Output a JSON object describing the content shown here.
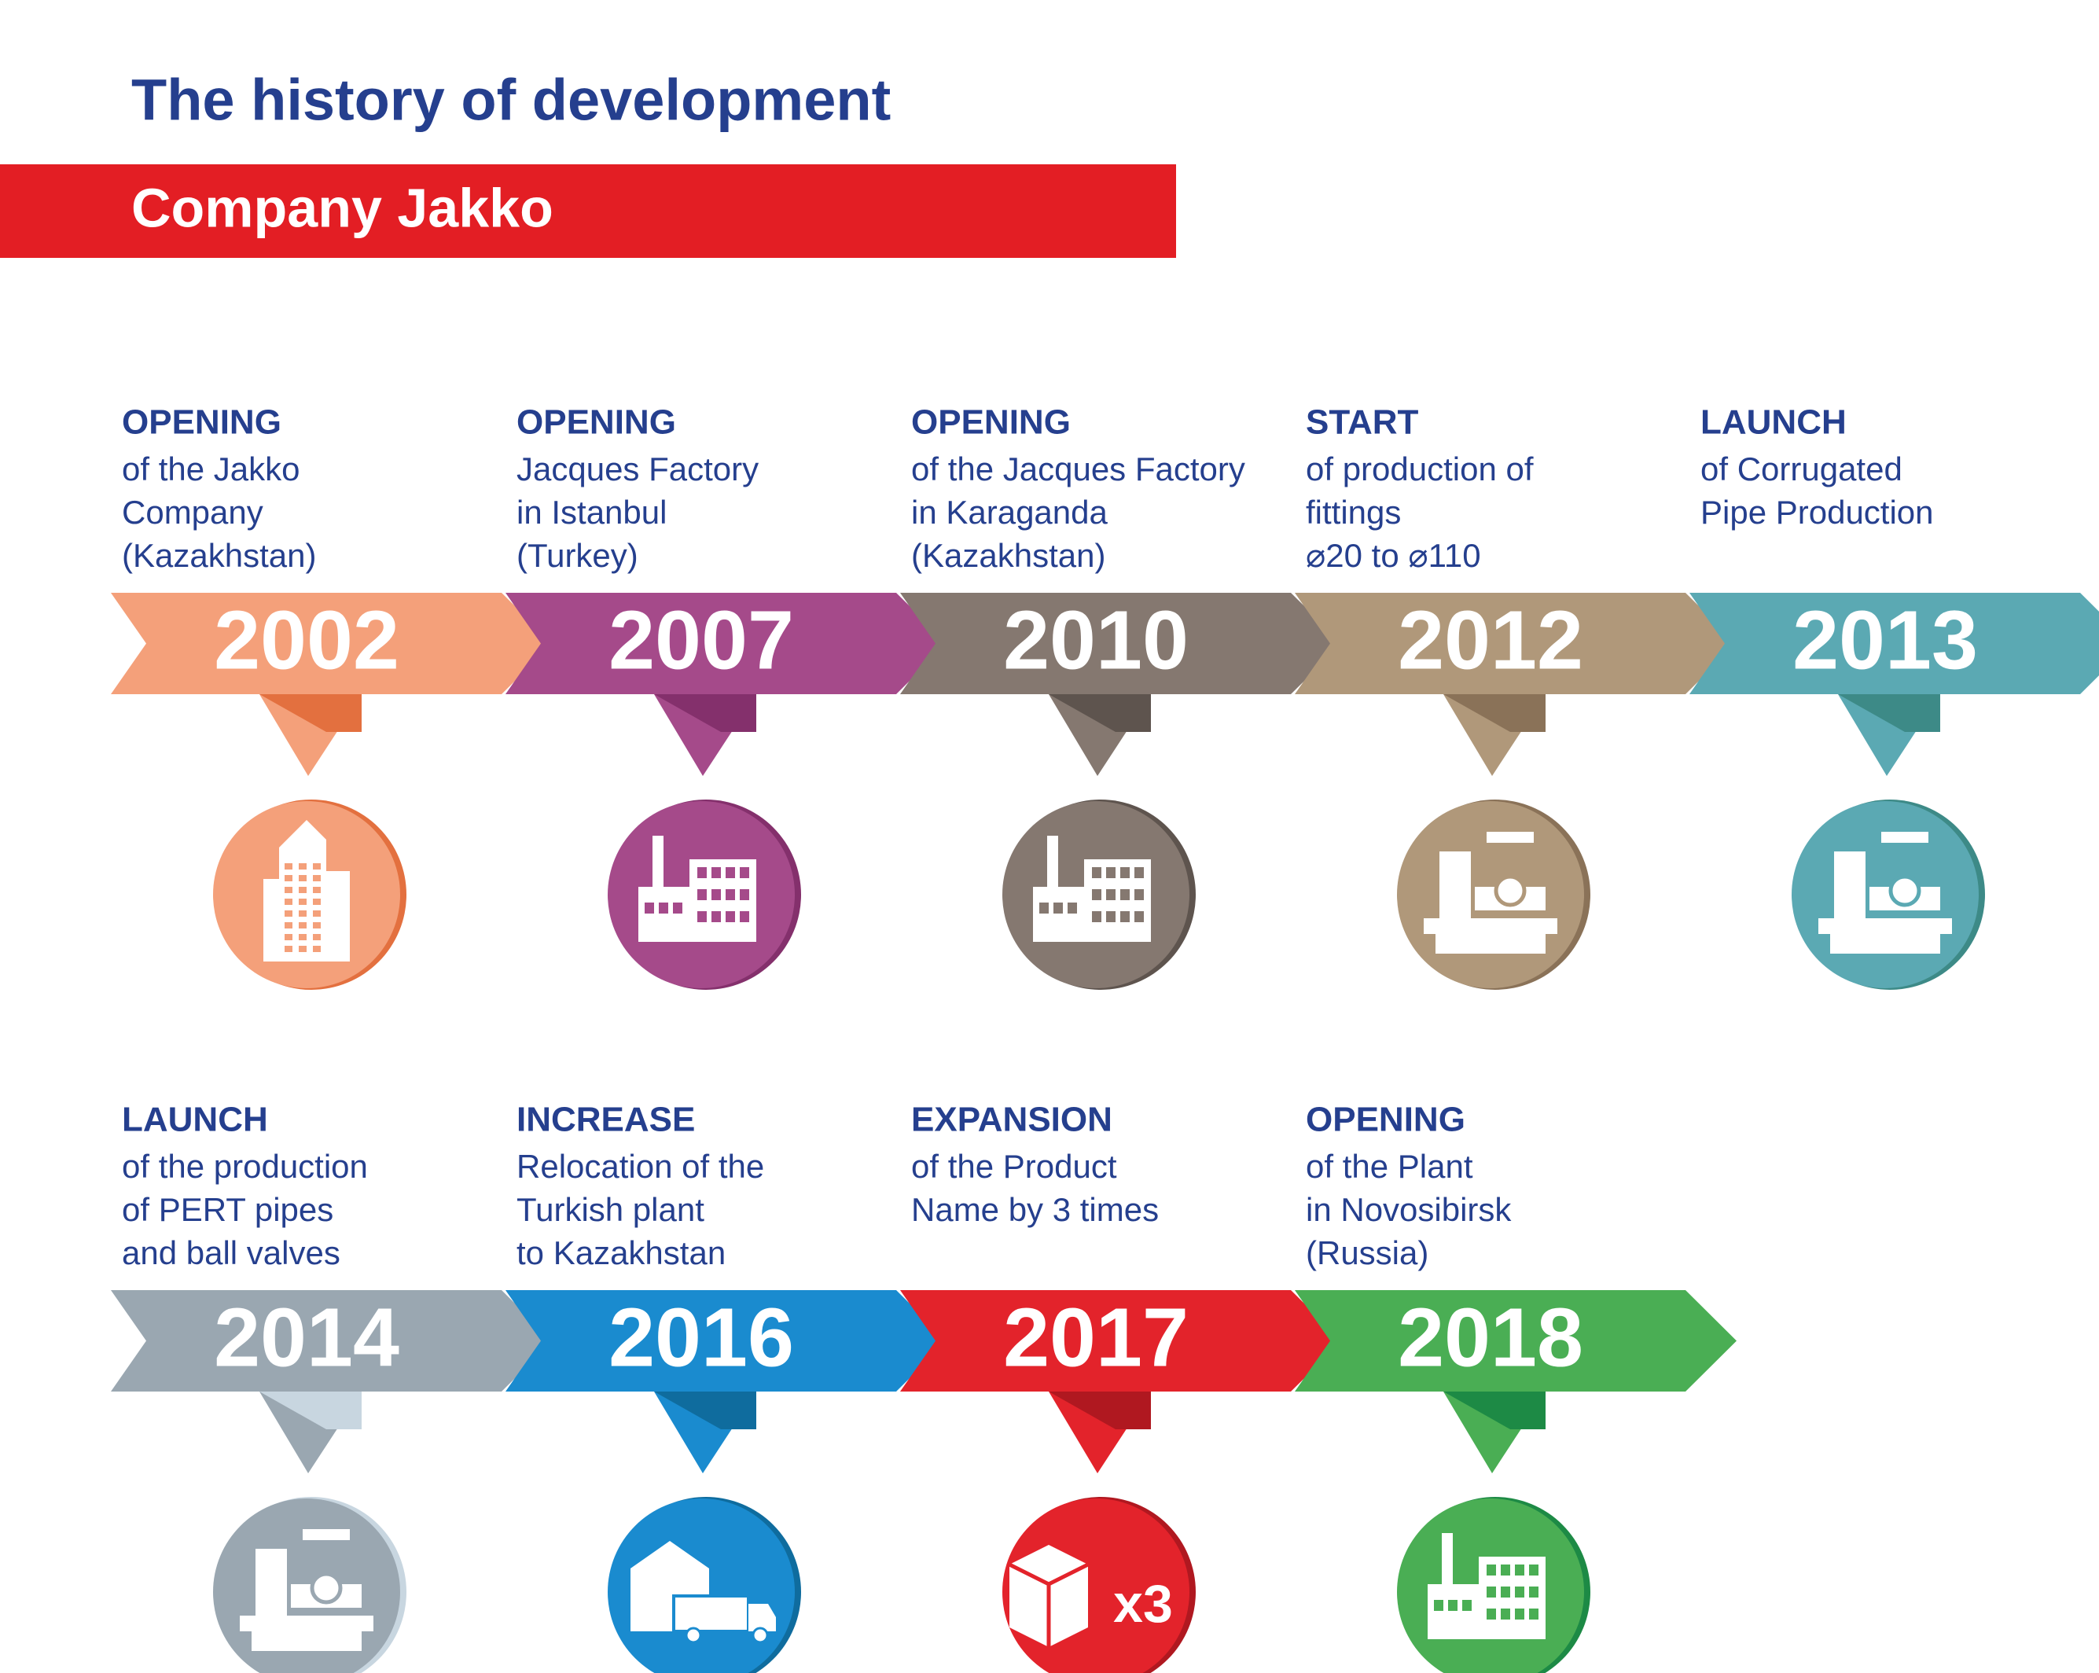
{
  "header": {
    "title": "The history of development",
    "subtitle": "Company Jakko"
  },
  "items": [
    {
      "heading": "OPENING",
      "lines": [
        "of the Jakko",
        "Company",
        "(Kazakhstan)"
      ],
      "year": "2002"
    },
    {
      "heading": "OPENING",
      "lines": [
        "Jacques Factory",
        "in Istanbul",
        "(Turkey)"
      ],
      "year": "2007"
    },
    {
      "heading": "OPENING",
      "lines": [
        "of the Jacques Factory",
        "in Karaganda",
        "(Kazakhstan)"
      ],
      "year": "2010"
    },
    {
      "heading": "START",
      "lines": [
        "of production of",
        "fittings",
        "⌀20 to ⌀110"
      ],
      "year": "2012"
    },
    {
      "heading": "LAUNCH",
      "lines": [
        "of Corrugated",
        "Pipe Production"
      ],
      "year": "2013"
    },
    {
      "heading": "LAUNCH",
      "lines": [
        "of the production",
        "of PERT pipes",
        "and ball valves"
      ],
      "year": "2014"
    },
    {
      "heading": "INCREASE",
      "lines": [
        "Relocation of the",
        "Turkish plant",
        "to Kazakhstan"
      ],
      "year": "2016"
    },
    {
      "heading": "EXPANSION",
      "lines": [
        "of the Product",
        "Name by 3 times"
      ],
      "year": "2017",
      "badge": "x3"
    },
    {
      "heading": "OPENING",
      "lines": [
        "of the Plant",
        "in Novosibirsk",
        "(Russia)"
      ],
      "year": "2018"
    }
  ]
}
